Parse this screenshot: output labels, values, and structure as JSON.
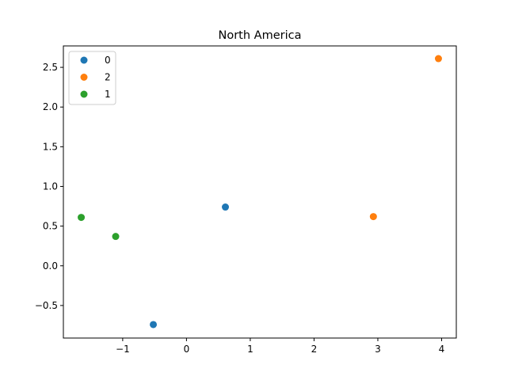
{
  "chart_data": {
    "type": "scatter",
    "title": "North America",
    "xlabel": "",
    "ylabel": "",
    "xlim": [
      -1.93,
      4.23
    ],
    "ylim": [
      -0.91,
      2.77
    ],
    "x_ticks": [
      -1,
      0,
      1,
      2,
      3,
      4
    ],
    "x_tick_labels": [
      "−1",
      "0",
      "1",
      "2",
      "3",
      "4"
    ],
    "y_ticks": [
      -0.5,
      0.0,
      0.5,
      1.0,
      1.5,
      2.0,
      2.5
    ],
    "y_tick_labels": [
      "−0.5",
      "0.0",
      "0.5",
      "1.0",
      "1.5",
      "2.0",
      "2.5"
    ],
    "grid": false,
    "legend_position": "top-left",
    "series": [
      {
        "name": "0",
        "color": "#1f77b4",
        "points": [
          [
            -0.52,
            -0.74
          ],
          [
            0.61,
            0.74
          ]
        ]
      },
      {
        "name": "2",
        "color": "#ff7f0e",
        "points": [
          [
            2.93,
            0.62
          ],
          [
            3.95,
            2.61
          ]
        ]
      },
      {
        "name": "1",
        "color": "#2ca02c",
        "points": [
          [
            -1.65,
            0.61
          ],
          [
            -1.11,
            0.37
          ]
        ]
      }
    ]
  }
}
